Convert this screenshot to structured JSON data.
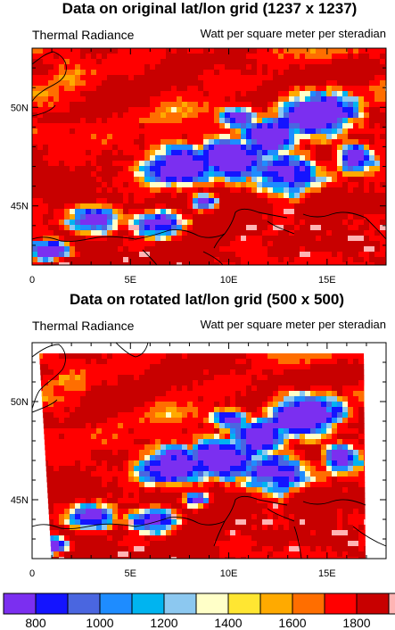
{
  "chart_data": [
    {
      "type": "heatmap",
      "title": "Data on original lat/lon grid (1237 x 1237)",
      "left_label": "Thermal Radiance",
      "right_label": "Watt per square meter per steradian",
      "x_ticks": [
        {
          "value": 0,
          "label": "0"
        },
        {
          "value": 5,
          "label": "5E"
        },
        {
          "value": 10,
          "label": "10E"
        },
        {
          "value": 15,
          "label": "15E"
        }
      ],
      "y_ticks": [
        {
          "value": 45,
          "label": "45N"
        },
        {
          "value": 50,
          "label": "50N"
        }
      ],
      "xlim": [
        0,
        18
      ],
      "ylim": [
        42,
        53
      ],
      "grid": false,
      "field_shape": "rectangular"
    },
    {
      "type": "heatmap",
      "title": "Data on rotated lat/lon grid (500 x 500)",
      "left_label": "Thermal Radiance",
      "right_label": "Watt per square meter per steradian",
      "x_ticks": [
        {
          "value": 0,
          "label": "0"
        },
        {
          "value": 5,
          "label": "5E"
        },
        {
          "value": 10,
          "label": "10E"
        },
        {
          "value": 15,
          "label": "15E"
        }
      ],
      "y_ticks": [
        {
          "value": 45,
          "label": "45N"
        },
        {
          "value": 50,
          "label": "50N"
        }
      ],
      "xlim": [
        0,
        18
      ],
      "ylim": [
        42,
        53
      ],
      "grid": false,
      "field_shape": "trapezoid"
    }
  ],
  "colorbar": {
    "colors": [
      "#7b2ff0",
      "#1414ff",
      "#4a66e0",
      "#1e8cff",
      "#00b4f0",
      "#8cc8f0",
      "#ffffc8",
      "#ffe632",
      "#ffaa00",
      "#ff6e00",
      "#ff0000",
      "#c80000",
      "#ffb4b4"
    ],
    "labels": [
      "800",
      "1000",
      "1200",
      "1400",
      "1600",
      "1800"
    ]
  }
}
